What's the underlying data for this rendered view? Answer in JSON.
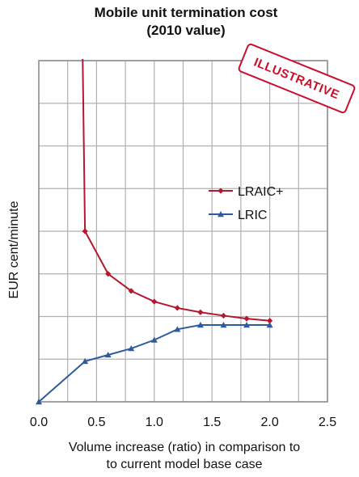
{
  "chart_data": {
    "type": "line",
    "title": "Mobile unit termination cost",
    "subtitle": "(2010 value)",
    "xlabel_line1": "Volume increase (ratio) in comparison to",
    "xlabel_line2": "to current model base case",
    "ylabel": "EUR cent/minute",
    "xlim": [
      0,
      2.5
    ],
    "ylim": [
      0,
      8
    ],
    "x_ticks": [
      "0.0",
      "0.5",
      "1.0",
      "1.5",
      "2.0",
      "2.5"
    ],
    "grid": true,
    "legend_position": "right-middle",
    "stamp": "ILLUSTRATIVE",
    "series": [
      {
        "name": "LRAIC+",
        "color": "#b5172f",
        "marker": "diamond",
        "x": [
          0.4,
          0.6,
          0.8,
          1.0,
          1.2,
          1.4,
          1.6,
          1.8,
          2.0
        ],
        "y": [
          4.0,
          3.0,
          2.6,
          2.35,
          2.2,
          2.1,
          2.02,
          1.95,
          1.9
        ],
        "asymptote_top_x": 0.38
      },
      {
        "name": "LRIC",
        "color": "#2e5b9c",
        "marker": "triangle",
        "x": [
          0.0,
          0.4,
          0.6,
          0.8,
          1.0,
          1.2,
          1.4,
          1.6,
          1.8,
          2.0
        ],
        "y": [
          0.0,
          0.95,
          1.1,
          1.25,
          1.45,
          1.7,
          1.8,
          1.8,
          1.8,
          1.8
        ]
      }
    ]
  }
}
